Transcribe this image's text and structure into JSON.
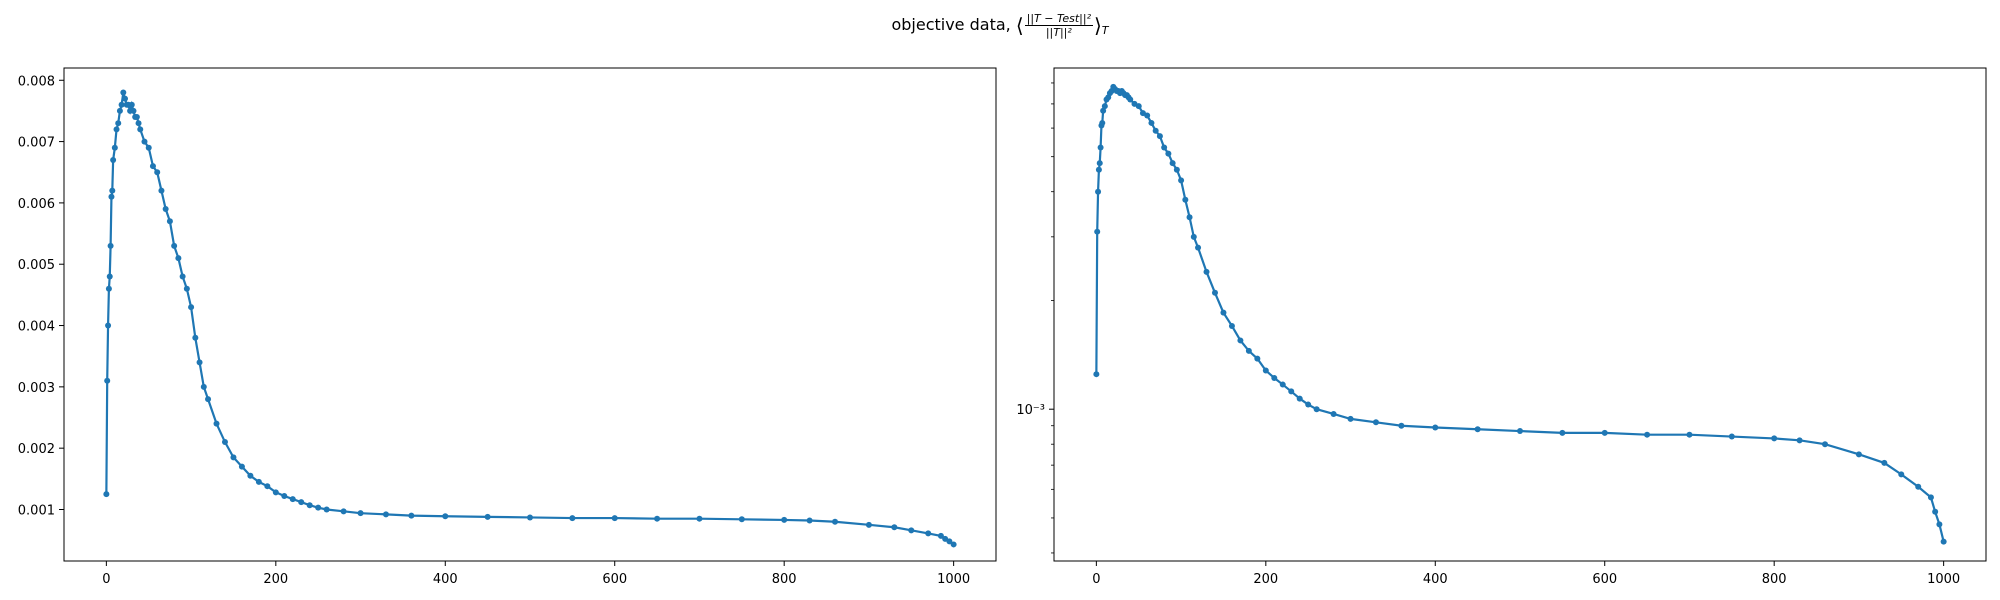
{
  "title": {
    "prefix": "objective data,",
    "lparen": "⟨",
    "numerator": "||T − Test||²",
    "denominator": "||T||²",
    "rparen": "⟩",
    "subscript": "T"
  },
  "chart_data": [
    {
      "type": "line",
      "series": [
        {
          "color": "#1f77b4",
          "marker": "circle"
        }
      ],
      "x": [
        0,
        1,
        2,
        3,
        4,
        5,
        6,
        7,
        8,
        10,
        12,
        14,
        16,
        18,
        20,
        22,
        24,
        26,
        28,
        30,
        32,
        34,
        36,
        38,
        40,
        45,
        50,
        55,
        60,
        65,
        70,
        75,
        80,
        85,
        90,
        95,
        100,
        105,
        110,
        115,
        120,
        130,
        140,
        150,
        160,
        170,
        180,
        190,
        200,
        210,
        220,
        230,
        240,
        250,
        260,
        280,
        300,
        330,
        360,
        400,
        450,
        500,
        550,
        600,
        650,
        700,
        750,
        800,
        830,
        860,
        900,
        930,
        950,
        970,
        985,
        990,
        995,
        1000
      ],
      "y": [
        0.00125,
        0.0031,
        0.004,
        0.0046,
        0.0048,
        0.0053,
        0.0061,
        0.0062,
        0.0067,
        0.0069,
        0.0072,
        0.0073,
        0.0075,
        0.0076,
        0.0078,
        0.0077,
        0.0076,
        0.0076,
        0.0075,
        0.0076,
        0.0075,
        0.0074,
        0.0074,
        0.0073,
        0.0072,
        0.007,
        0.0069,
        0.0066,
        0.0065,
        0.0062,
        0.0059,
        0.0057,
        0.0053,
        0.0051,
        0.0048,
        0.0046,
        0.0043,
        0.0038,
        0.0034,
        0.003,
        0.0028,
        0.0024,
        0.0021,
        0.00185,
        0.0017,
        0.00155,
        0.00145,
        0.00138,
        0.00128,
        0.00122,
        0.00117,
        0.00112,
        0.00107,
        0.00103,
        0.001,
        0.00097,
        0.00094,
        0.00092,
        0.0009,
        0.00089,
        0.00088,
        0.00087,
        0.00086,
        0.00086,
        0.00085,
        0.00085,
        0.00084,
        0.00083,
        0.00082,
        0.0008,
        0.00075,
        0.00071,
        0.00066,
        0.00061,
        0.00057,
        0.00052,
        0.00048,
        0.00043
      ],
      "xlim": [
        -50,
        1050
      ],
      "ylim": [
        0.00016,
        0.0082
      ],
      "xticks": [
        0,
        200,
        400,
        600,
        800,
        1000
      ],
      "yticks": [
        0.001,
        0.002,
        0.003,
        0.004,
        0.005,
        0.006,
        0.007,
        0.008
      ],
      "ytick_labels": [
        "0.001",
        "0.002",
        "0.003",
        "0.004",
        "0.005",
        "0.006",
        "0.007",
        "0.008"
      ],
      "yscale": "linear",
      "grid": false
    },
    {
      "type": "line",
      "series": [
        {
          "color": "#1f77b4",
          "marker": "circle"
        }
      ],
      "x": [
        0,
        1,
        2,
        3,
        4,
        5,
        6,
        7,
        8,
        10,
        12,
        14,
        16,
        18,
        20,
        22,
        24,
        26,
        28,
        30,
        32,
        34,
        36,
        38,
        40,
        45,
        50,
        55,
        60,
        65,
        70,
        75,
        80,
        85,
        90,
        95,
        100,
        105,
        110,
        115,
        120,
        130,
        140,
        150,
        160,
        170,
        180,
        190,
        200,
        210,
        220,
        230,
        240,
        250,
        260,
        280,
        300,
        330,
        360,
        400,
        450,
        500,
        550,
        600,
        650,
        700,
        750,
        800,
        830,
        860,
        900,
        930,
        950,
        970,
        985,
        990,
        995,
        1000
      ],
      "y": [
        0.00125,
        0.0031,
        0.004,
        0.0046,
        0.0048,
        0.0053,
        0.0061,
        0.0062,
        0.0067,
        0.0069,
        0.0072,
        0.0073,
        0.0075,
        0.0076,
        0.0078,
        0.0077,
        0.0076,
        0.0076,
        0.0075,
        0.0076,
        0.0075,
        0.0074,
        0.0074,
        0.0073,
        0.0072,
        0.007,
        0.0069,
        0.0066,
        0.0065,
        0.0062,
        0.0059,
        0.0057,
        0.0053,
        0.0051,
        0.0048,
        0.0046,
        0.0043,
        0.0038,
        0.0034,
        0.003,
        0.0028,
        0.0024,
        0.0021,
        0.00185,
        0.0017,
        0.00155,
        0.00145,
        0.00138,
        0.00128,
        0.00122,
        0.00117,
        0.00112,
        0.00107,
        0.00103,
        0.001,
        0.00097,
        0.00094,
        0.00092,
        0.0009,
        0.00089,
        0.00088,
        0.00087,
        0.00086,
        0.00086,
        0.00085,
        0.00085,
        0.00084,
        0.00083,
        0.00082,
        0.0008,
        0.00075,
        0.00071,
        0.00066,
        0.00061,
        0.00057,
        0.00052,
        0.00048,
        0.00043
      ],
      "xlim": [
        -50,
        1050
      ],
      "ylim": [
        0.00038,
        0.0088
      ],
      "xticks": [
        0,
        200,
        400,
        600,
        800,
        1000
      ],
      "yticks": [
        0.001
      ],
      "ytick_labels": [
        "10⁻³"
      ],
      "yscale": "log",
      "grid": false
    }
  ]
}
